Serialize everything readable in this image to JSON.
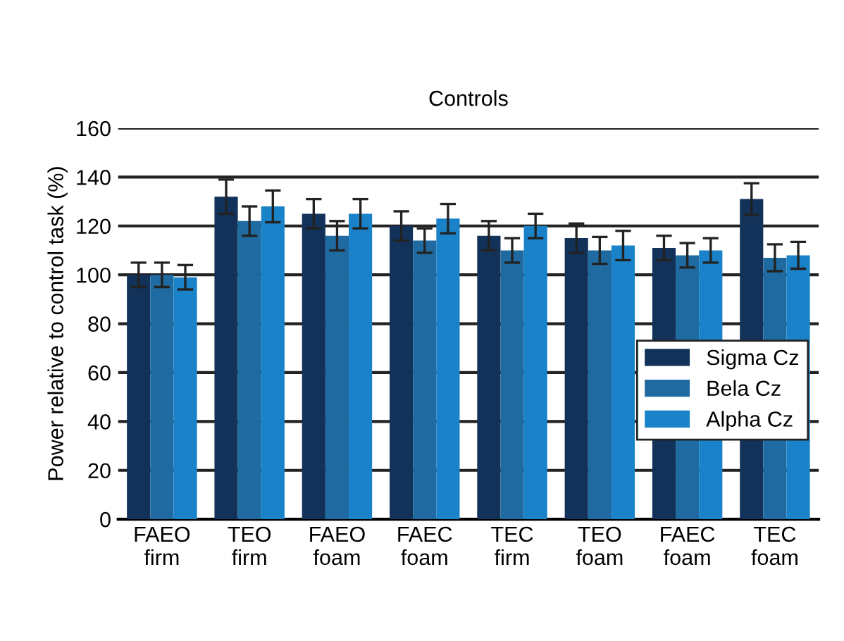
{
  "chart_data": {
    "type": "bar",
    "title": "Controls",
    "ylabel": "Power relative to control task (%)",
    "categories": [
      "FAEO\nfirm",
      "TEO\nfirm",
      "FAEO\nfoam",
      "FAEC\nfoam",
      "TEC\nfirm",
      "TEO\nfoam",
      "FAEC\nfoam",
      "TEC\nfoam"
    ],
    "series": [
      {
        "name": "Sigma Cz",
        "color": "#12325a",
        "values": [
          100,
          132,
          125,
          120,
          116,
          115,
          111,
          131
        ],
        "errors": [
          5,
          7,
          6,
          6,
          6,
          6,
          5,
          6.5
        ]
      },
      {
        "name": "Bela Cz",
        "color": "#1f6aa0",
        "values": [
          100,
          122,
          116,
          114,
          110,
          110,
          108,
          107
        ],
        "errors": [
          5,
          6,
          6,
          5,
          5,
          5.5,
          5,
          5.5
        ]
      },
      {
        "name": "Alpha Cz",
        "color": "#1a82c8",
        "values": [
          99,
          128,
          125,
          123,
          120,
          112,
          110,
          108
        ],
        "errors": [
          5,
          6.5,
          6,
          6,
          5,
          6,
          5,
          5.5
        ]
      }
    ],
    "ylim": [
      0,
      160
    ],
    "yticks": [
      0,
      20,
      40,
      60,
      80,
      100,
      120,
      140,
      160
    ],
    "grid": "y",
    "legend": "right"
  }
}
